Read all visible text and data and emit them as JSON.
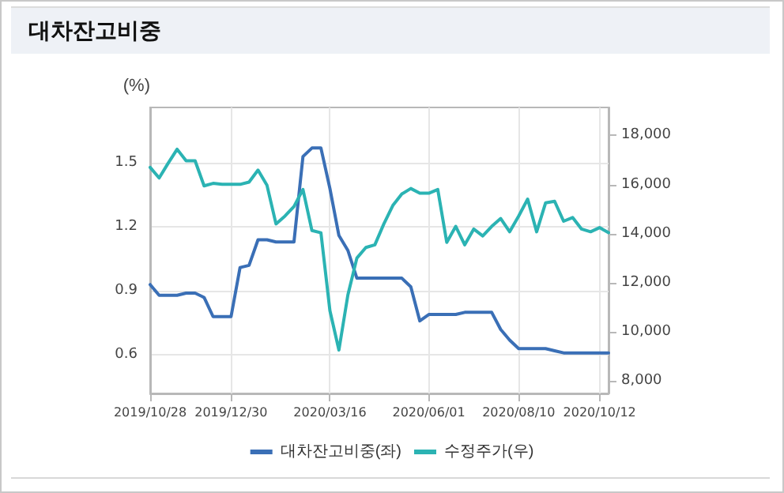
{
  "chart_data": {
    "type": "line",
    "title": "대차잔고비중",
    "ylabel": "(%)",
    "x": [
      "2019-10-28",
      "2019-11-04",
      "2019-11-11",
      "2019-11-18",
      "2019-11-25",
      "2019-12-02",
      "2019-12-09",
      "2019-12-16",
      "2019-12-23",
      "2019-12-30",
      "2020-01-06",
      "2020-01-13",
      "2020-01-20",
      "2020-01-27",
      "2020-02-03",
      "2020-02-10",
      "2020-02-17",
      "2020-02-24",
      "2020-03-02",
      "2020-03-09",
      "2020-03-16",
      "2020-03-23",
      "2020-03-30",
      "2020-04-06",
      "2020-04-13",
      "2020-04-20",
      "2020-04-27",
      "2020-05-04",
      "2020-05-11",
      "2020-05-18",
      "2020-05-25",
      "2020-06-01",
      "2020-06-08",
      "2020-06-15",
      "2020-06-22",
      "2020-06-29",
      "2020-07-06",
      "2020-07-13",
      "2020-07-20",
      "2020-07-27",
      "2020-08-03",
      "2020-08-10",
      "2020-08-17",
      "2020-08-24",
      "2020-08-31",
      "2020-09-07",
      "2020-09-14",
      "2020-09-21",
      "2020-09-28",
      "2020-10-05",
      "2020-10-12",
      "2020-10-19"
    ],
    "series": [
      {
        "name": "대차잔고비중(좌)",
        "color": "#3a6fb6",
        "values": [
          0.93,
          0.88,
          0.88,
          0.88,
          0.89,
          0.89,
          0.87,
          0.78,
          0.78,
          0.78,
          1.01,
          1.02,
          1.14,
          1.14,
          1.13,
          1.13,
          1.13,
          1.53,
          1.57,
          1.57,
          1.38,
          1.16,
          1.09,
          0.96,
          0.96,
          0.96,
          0.96,
          0.96,
          0.96,
          0.92,
          0.76,
          0.79,
          0.79,
          0.79,
          0.79,
          0.8,
          0.8,
          0.8,
          0.8,
          0.72,
          0.67,
          0.63,
          0.63,
          0.63,
          0.63,
          0.62,
          0.61,
          0.61,
          0.61,
          0.61,
          0.61,
          0.61
        ]
      },
      {
        "name": "수정주가(우)",
        "color": "#2bb3b3",
        "axis": "y2",
        "values": [
          16700,
          16270,
          16870,
          17440,
          16970,
          16970,
          15950,
          16050,
          16010,
          16010,
          16010,
          16100,
          16590,
          15970,
          14400,
          14720,
          15110,
          15800,
          14130,
          14040,
          10870,
          9270,
          11510,
          13010,
          13440,
          13550,
          14400,
          15150,
          15620,
          15840,
          15650,
          15650,
          15800,
          13650,
          14300,
          13550,
          14190,
          13910,
          14300,
          14620,
          14080,
          14720,
          15410,
          14080,
          15260,
          15320,
          14510,
          14660,
          14190,
          14080,
          14250,
          14040
        ]
      }
    ],
    "xlim": [
      "2019-10-28",
      "2020-10-19"
    ],
    "xticks": [
      {
        "value": "2019-10-28",
        "label": "2019/10/28"
      },
      {
        "value": "2019-12-30",
        "label": "2019/12/30"
      },
      {
        "value": "2020-03-16",
        "label": "2020/03/16"
      },
      {
        "value": "2020-06-01",
        "label": "2020/06/01"
      },
      {
        "value": "2020-08-10",
        "label": "2020/08/10"
      },
      {
        "value": "2020-10-12",
        "label": "2020/10/12"
      }
    ],
    "ylim": [
      0.42,
      1.76
    ],
    "yticks": [
      0.6,
      0.9,
      1.2,
      1.5
    ],
    "y2lim": [
      7500,
      19140
    ],
    "y2ticks": [
      {
        "value": 8000,
        "label": "8,000"
      },
      {
        "value": 10000,
        "label": "10,000"
      },
      {
        "value": 12000,
        "label": "12,000"
      },
      {
        "value": 14000,
        "label": "14,000"
      },
      {
        "value": 16000,
        "label": "16,000"
      },
      {
        "value": 18000,
        "label": "18,000"
      }
    ],
    "grid": true,
    "legend": "bottom",
    "marker": "none",
    "line_style": "solid"
  }
}
